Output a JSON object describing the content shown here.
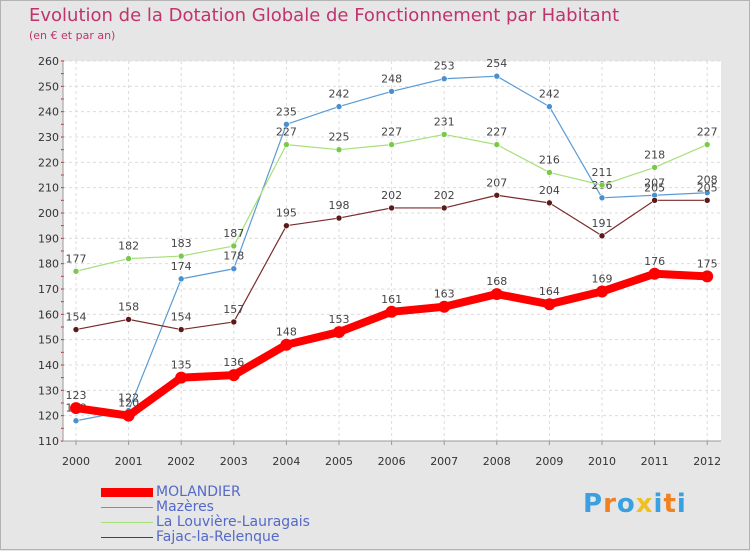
{
  "header": {
    "title": "Evolution de la Dotation Globale de Fonctionnement par Habitant",
    "subtitle": "(en € et par an)"
  },
  "chart_data": {
    "type": "line",
    "title": "Evolution de la Dotation Globale de Fonctionnement par Habitant",
    "subtitle": "(en € et par an)",
    "xlabel": "",
    "ylabel": "",
    "x": [
      "2000",
      "2001",
      "2002",
      "2003",
      "2004",
      "2005",
      "2006",
      "2007",
      "2008",
      "2009",
      "2010",
      "2011",
      "2012"
    ],
    "ylim": [
      110,
      260
    ],
    "yticks": [
      110,
      120,
      130,
      140,
      150,
      160,
      170,
      180,
      190,
      200,
      210,
      220,
      230,
      240,
      250,
      260
    ],
    "grid": true,
    "legend_position": "bottom-left",
    "series": [
      {
        "name": "Mazères",
        "color": "#5b9bd5",
        "dot": "#4a90d0",
        "values": [
          118,
          122,
          174,
          178,
          235,
          242,
          248,
          253,
          254,
          242,
          206,
          207,
          208
        ],
        "labels": [
          "118",
          "122",
          "174",
          "178",
          "235",
          "242",
          "248",
          "253",
          "254",
          "242",
          "206",
          "207",
          "208"
        ]
      },
      {
        "name": "La Louvière-Lauragais",
        "color": "#a6e07a",
        "dot": "#7ac94a",
        "values": [
          177,
          182,
          183,
          187,
          227,
          225,
          227,
          231,
          227,
          216,
          211,
          218,
          227
        ],
        "labels": [
          "177",
          "182",
          "183",
          "187",
          "227",
          "225",
          "227",
          "231",
          "227",
          "216",
          "211",
          "218",
          "227"
        ]
      },
      {
        "name": "Fajac-la-Relenque",
        "color": "#7a2b2b",
        "dot": "#5a1a1a",
        "values": [
          154,
          158,
          154,
          157,
          195,
          198,
          202,
          202,
          207,
          204,
          191,
          205,
          205
        ],
        "labels": [
          "154",
          "158",
          "154",
          "157",
          "195",
          "198",
          "202",
          "202",
          "207",
          "204",
          "191",
          "205",
          "205"
        ]
      },
      {
        "name": "MOLANDIER",
        "color": "#ff0000",
        "dot": "#ff0000",
        "values": [
          123,
          120,
          135,
          136,
          148,
          153,
          161,
          163,
          168,
          164,
          169,
          176,
          175
        ],
        "labels": [
          "123",
          "120",
          "135",
          "136",
          "148",
          "153",
          "161",
          "163",
          "168",
          "164",
          "169",
          "176",
          "175"
        ]
      }
    ]
  },
  "legend": {
    "items": [
      {
        "label": "MOLANDIER",
        "color": "#ff0000"
      },
      {
        "label": "Mazères",
        "color": "#5b9bd5"
      },
      {
        "label": "La Louvière-Lauragais",
        "color": "#a6e07a"
      },
      {
        "label": "Fajac-la-Relenque",
        "color": "#7a2b2b"
      }
    ]
  },
  "logo": {
    "letters": [
      "P",
      "r",
      "o",
      "x",
      "i",
      "t",
      "i"
    ],
    "colors": [
      "#3aa0e0",
      "#f08020",
      "#3aa0e0",
      "#f0c020",
      "#3aa0e0",
      "#f08020",
      "#3aa0e0"
    ]
  }
}
